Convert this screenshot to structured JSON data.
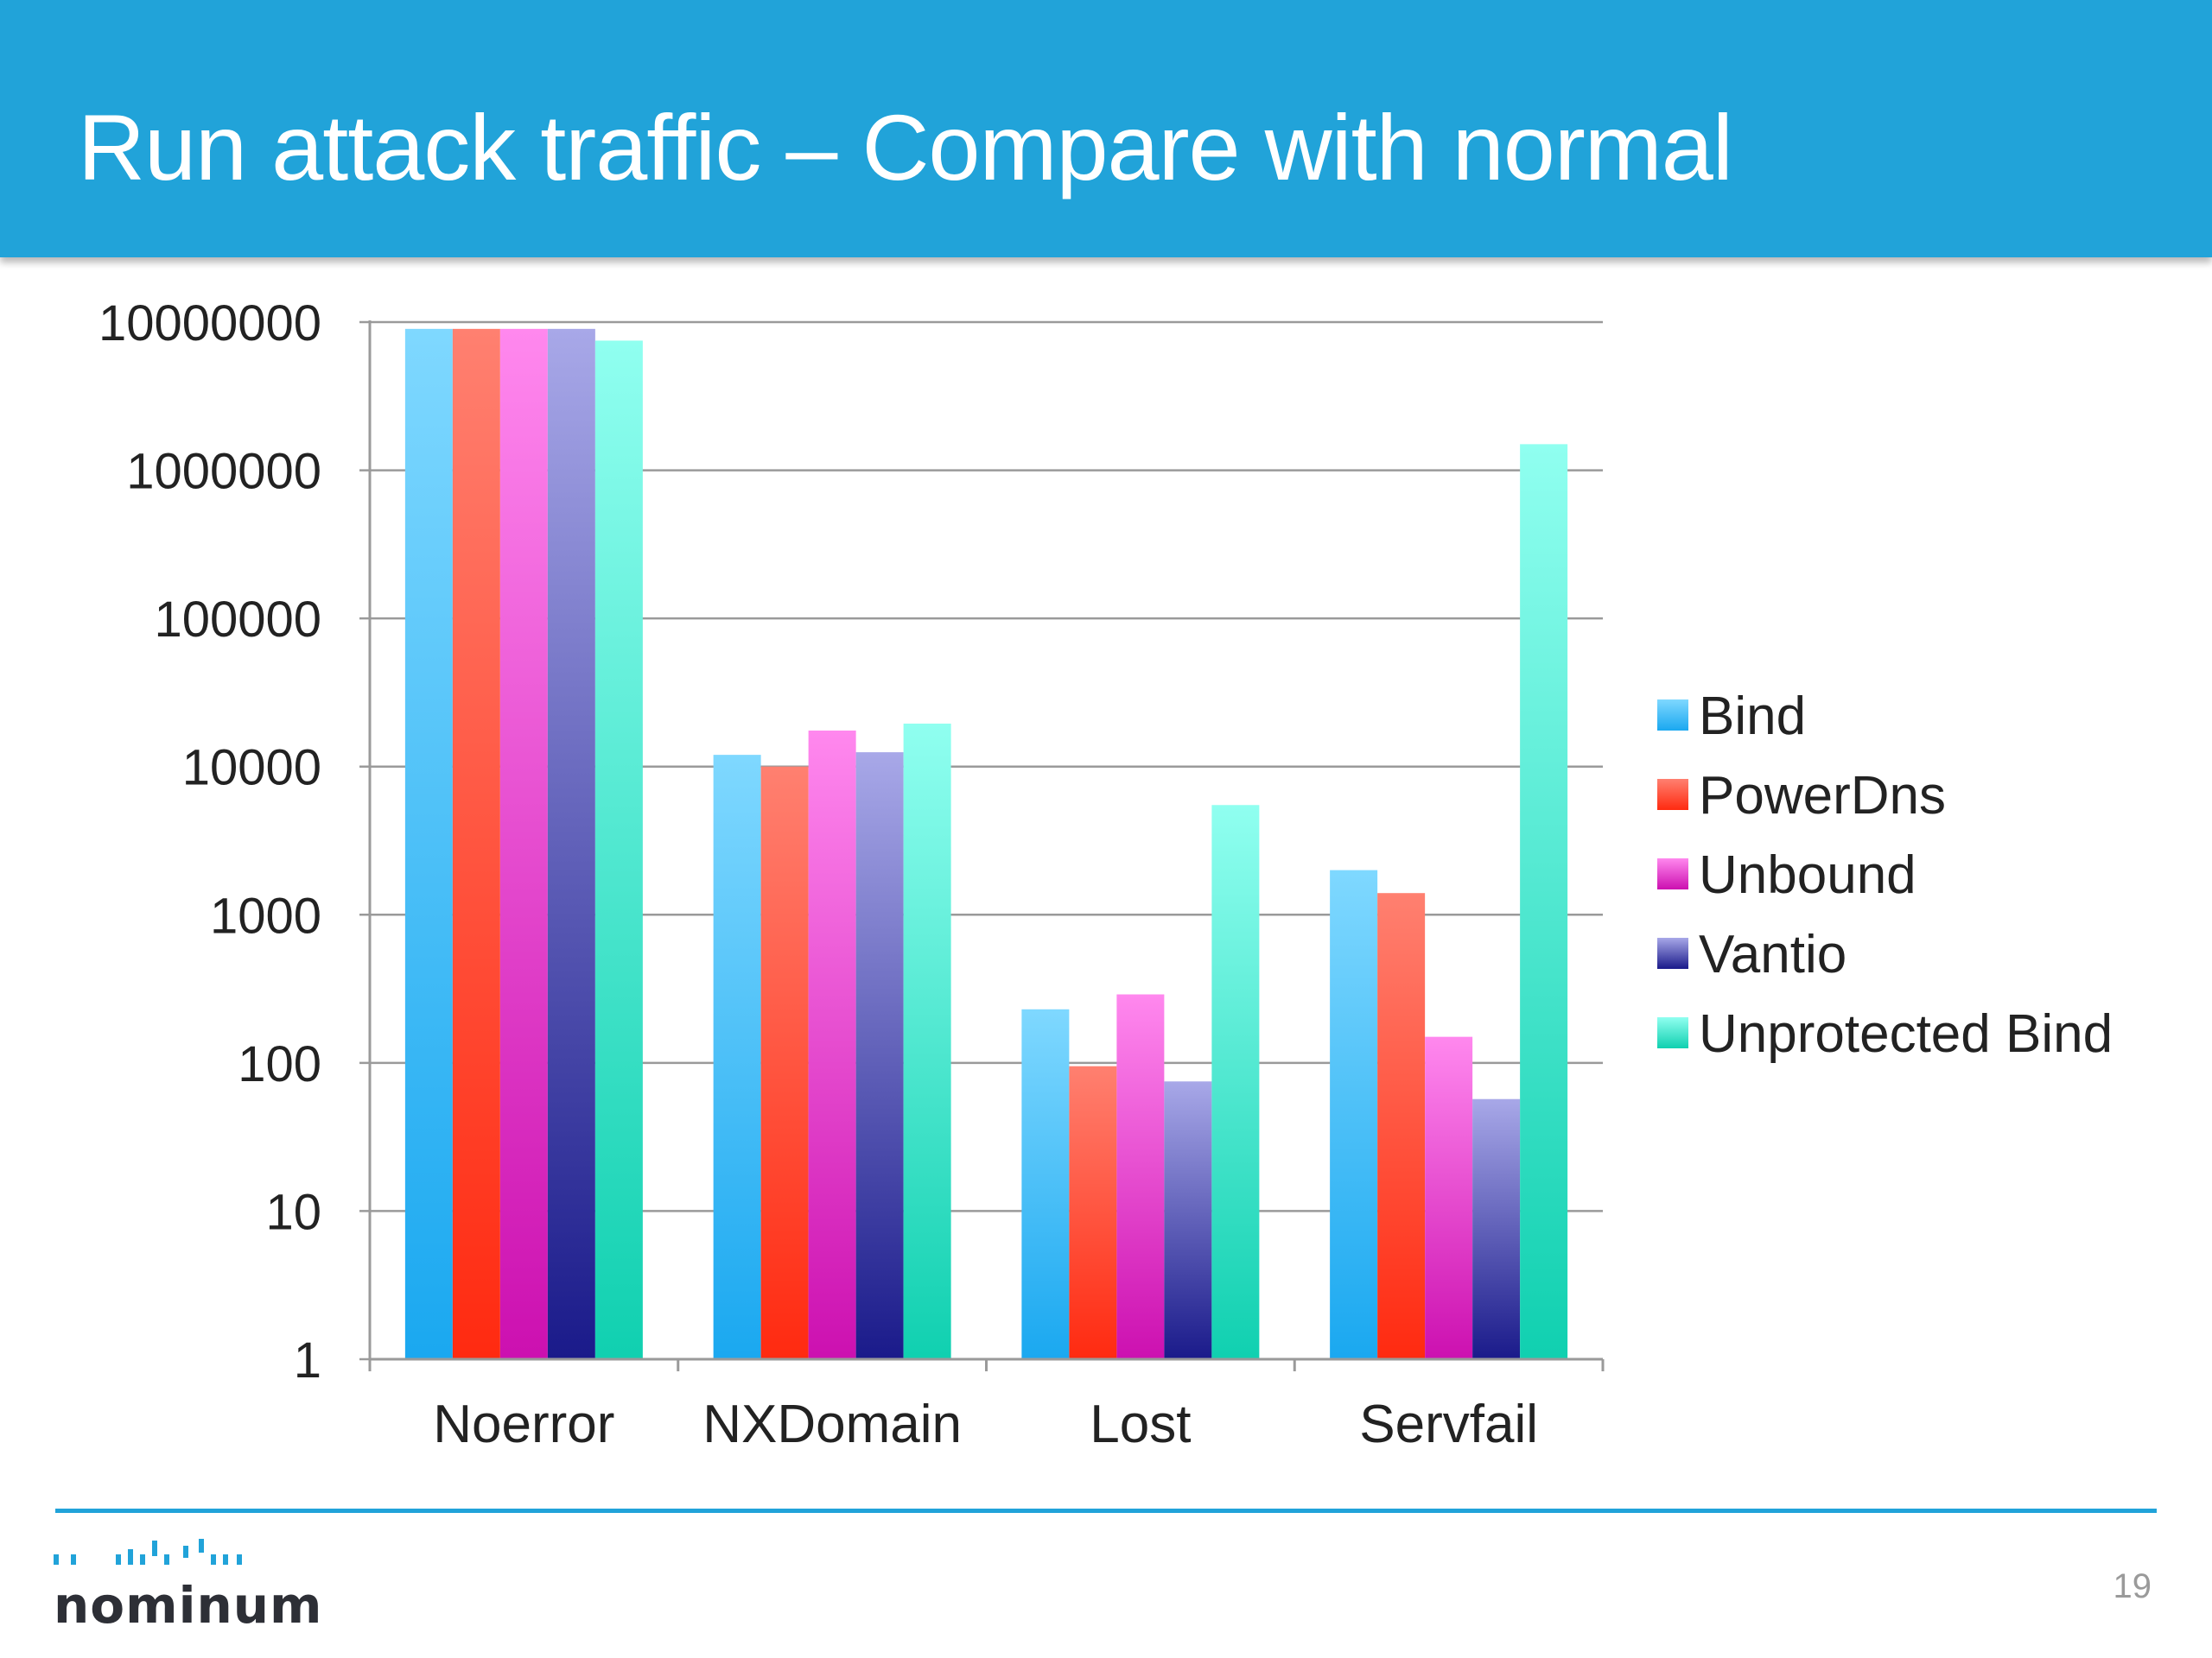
{
  "slide": {
    "title": "Run attack traffic – Compare with normal",
    "page_number": "19",
    "logo_text": "nominum",
    "accent_color": "#21a3d9"
  },
  "chart_data": {
    "type": "bar",
    "title": "",
    "xlabel": "",
    "ylabel": "",
    "yscale": "log",
    "ylim": [
      1,
      10000000
    ],
    "yticks": [
      1,
      10,
      100,
      1000,
      10000,
      100000,
      1000000,
      10000000
    ],
    "ytick_labels": [
      "1",
      "10",
      "100",
      "1000",
      "10000",
      "100000",
      "1000000",
      "10000000"
    ],
    "grid": true,
    "legend_position": "right",
    "categories": [
      "Noerror",
      "NXDomain",
      "Lost",
      "Servfail"
    ],
    "series": [
      {
        "name": "Bind",
        "values": [
          9000000,
          12000,
          230,
          2000
        ],
        "color_top": "#7fd8ff",
        "color_bottom": "#1aa8f0"
      },
      {
        "name": "PowerDns",
        "values": [
          9000000,
          10000,
          95,
          1400
        ],
        "color_top": "#ff8070",
        "color_bottom": "#ff2a10"
      },
      {
        "name": "Unbound",
        "values": [
          9000000,
          17500,
          290,
          150
        ],
        "color_top": "#ff88ee",
        "color_bottom": "#cc10b0"
      },
      {
        "name": "Vantio",
        "values": [
          9000000,
          12500,
          75,
          57
        ],
        "color_top": "#a8a8e8",
        "color_bottom": "#1a1a8a"
      },
      {
        "name": "Unprotected Bind",
        "values": [
          7500000,
          19500,
          5500,
          1500000
        ],
        "color_top": "#90fff0",
        "color_bottom": "#10d0b0"
      }
    ]
  }
}
